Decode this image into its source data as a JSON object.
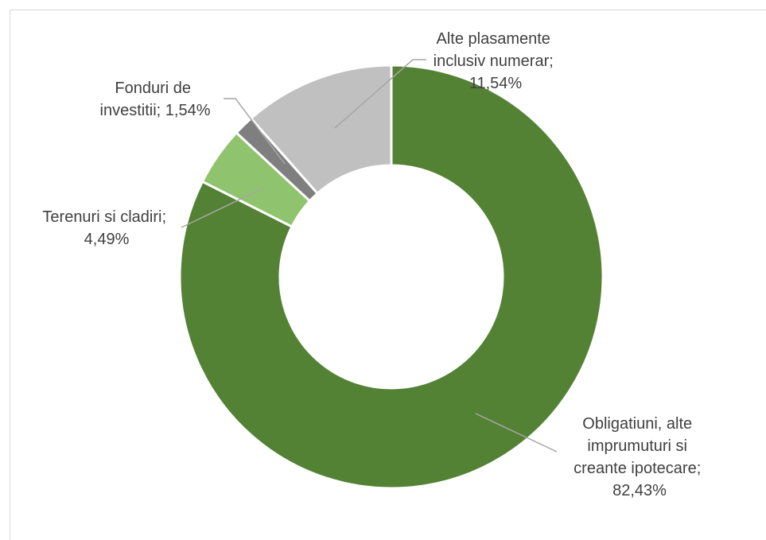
{
  "chart_data": {
    "type": "pie",
    "donut": true,
    "legend": "none",
    "slices": [
      {
        "name": "Obligatiuni, alte imprumuturi si creante ipotecare",
        "value": 82.43,
        "label": "82,43%",
        "color": "#548235"
      },
      {
        "name": "Terenuri si cladiri",
        "value": 4.49,
        "label": "4,49%",
        "color": "#8fc36d"
      },
      {
        "name": "Fonduri de investitii",
        "value": 1.54,
        "label": "1,54%",
        "color": "#7f7f7f"
      },
      {
        "name": "Alte plasamente inclusiv numerar",
        "value": 11.54,
        "label": "11,54%",
        "color": "#c0c0c0"
      }
    ]
  },
  "labels": {
    "obligatiuni": [
      "Obligatiuni, alte",
      "imprumuturi si",
      "creante ipotecare;",
      "82,43%"
    ],
    "terenuri": [
      "Terenuri si cladiri;",
      "4,49%"
    ],
    "fonduri": [
      "Fonduri de",
      "investitii; 1,54%"
    ],
    "alte": [
      "Alte plasamente",
      "inclusiv numerar;",
      "11,54%"
    ]
  }
}
